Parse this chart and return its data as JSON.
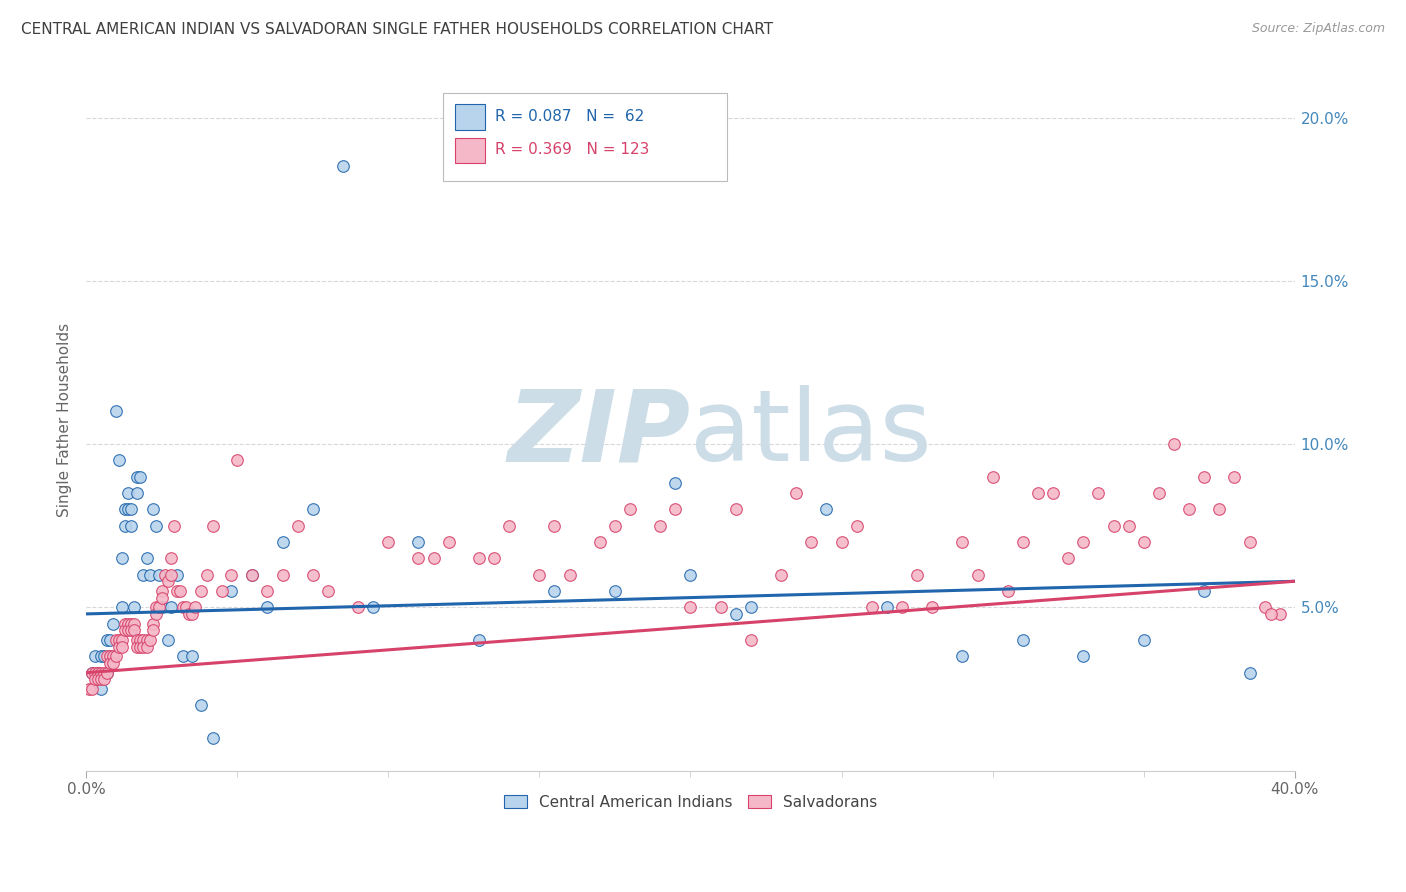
{
  "title": "CENTRAL AMERICAN INDIAN VS SALVADORAN SINGLE FATHER HOUSEHOLDS CORRELATION CHART",
  "source": "Source: ZipAtlas.com",
  "ylabel": "Single Father Households",
  "legend_blue_R": "0.087",
  "legend_blue_N": "62",
  "legend_pink_R": "0.369",
  "legend_pink_N": "123",
  "blue_scatter_x": [
    0.002,
    0.003,
    0.004,
    0.005,
    0.005,
    0.006,
    0.007,
    0.007,
    0.008,
    0.008,
    0.009,
    0.01,
    0.011,
    0.012,
    0.012,
    0.013,
    0.013,
    0.014,
    0.014,
    0.015,
    0.015,
    0.016,
    0.017,
    0.017,
    0.018,
    0.019,
    0.02,
    0.021,
    0.022,
    0.023,
    0.024,
    0.025,
    0.027,
    0.028,
    0.03,
    0.032,
    0.035,
    0.038,
    0.042,
    0.048,
    0.055,
    0.06,
    0.065,
    0.075,
    0.085,
    0.095,
    0.11,
    0.13,
    0.155,
    0.175,
    0.2,
    0.22,
    0.245,
    0.265,
    0.29,
    0.31,
    0.33,
    0.35,
    0.37,
    0.385,
    0.195,
    0.215
  ],
  "blue_scatter_y": [
    0.03,
    0.035,
    0.03,
    0.035,
    0.025,
    0.035,
    0.03,
    0.04,
    0.035,
    0.04,
    0.045,
    0.11,
    0.095,
    0.05,
    0.065,
    0.075,
    0.08,
    0.08,
    0.085,
    0.08,
    0.075,
    0.05,
    0.085,
    0.09,
    0.09,
    0.06,
    0.065,
    0.06,
    0.08,
    0.075,
    0.06,
    0.05,
    0.04,
    0.05,
    0.06,
    0.035,
    0.035,
    0.02,
    0.01,
    0.055,
    0.06,
    0.05,
    0.07,
    0.08,
    0.185,
    0.05,
    0.07,
    0.04,
    0.055,
    0.055,
    0.06,
    0.05,
    0.08,
    0.05,
    0.035,
    0.04,
    0.035,
    0.04,
    0.055,
    0.03,
    0.088,
    0.048
  ],
  "pink_scatter_x": [
    0.001,
    0.002,
    0.002,
    0.003,
    0.003,
    0.004,
    0.004,
    0.005,
    0.005,
    0.006,
    0.006,
    0.007,
    0.007,
    0.008,
    0.008,
    0.009,
    0.009,
    0.01,
    0.01,
    0.011,
    0.011,
    0.012,
    0.012,
    0.013,
    0.013,
    0.014,
    0.014,
    0.015,
    0.015,
    0.016,
    0.016,
    0.017,
    0.017,
    0.018,
    0.018,
    0.019,
    0.019,
    0.02,
    0.02,
    0.021,
    0.022,
    0.022,
    0.023,
    0.023,
    0.024,
    0.025,
    0.025,
    0.026,
    0.027,
    0.028,
    0.028,
    0.029,
    0.03,
    0.031,
    0.032,
    0.033,
    0.034,
    0.035,
    0.036,
    0.038,
    0.04,
    0.042,
    0.045,
    0.048,
    0.05,
    0.055,
    0.06,
    0.065,
    0.07,
    0.075,
    0.08,
    0.09,
    0.1,
    0.11,
    0.12,
    0.13,
    0.14,
    0.15,
    0.16,
    0.17,
    0.18,
    0.19,
    0.2,
    0.21,
    0.22,
    0.23,
    0.24,
    0.25,
    0.26,
    0.27,
    0.28,
    0.29,
    0.3,
    0.31,
    0.32,
    0.33,
    0.34,
    0.35,
    0.36,
    0.37,
    0.38,
    0.39,
    0.395,
    0.115,
    0.135,
    0.155,
    0.175,
    0.195,
    0.215,
    0.235,
    0.255,
    0.275,
    0.295,
    0.315,
    0.335,
    0.355,
    0.375,
    0.392,
    0.305,
    0.325,
    0.345,
    0.365,
    0.385
  ],
  "pink_scatter_y": [
    0.025,
    0.025,
    0.03,
    0.03,
    0.028,
    0.03,
    0.028,
    0.03,
    0.028,
    0.03,
    0.028,
    0.03,
    0.035,
    0.035,
    0.033,
    0.035,
    0.033,
    0.035,
    0.04,
    0.04,
    0.038,
    0.04,
    0.038,
    0.045,
    0.043,
    0.045,
    0.043,
    0.045,
    0.043,
    0.045,
    0.043,
    0.04,
    0.038,
    0.04,
    0.038,
    0.04,
    0.038,
    0.04,
    0.038,
    0.04,
    0.045,
    0.043,
    0.05,
    0.048,
    0.05,
    0.055,
    0.053,
    0.06,
    0.058,
    0.065,
    0.06,
    0.075,
    0.055,
    0.055,
    0.05,
    0.05,
    0.048,
    0.048,
    0.05,
    0.055,
    0.06,
    0.075,
    0.055,
    0.06,
    0.095,
    0.06,
    0.055,
    0.06,
    0.075,
    0.06,
    0.055,
    0.05,
    0.07,
    0.065,
    0.07,
    0.065,
    0.075,
    0.06,
    0.06,
    0.07,
    0.08,
    0.075,
    0.05,
    0.05,
    0.04,
    0.06,
    0.07,
    0.07,
    0.05,
    0.05,
    0.05,
    0.07,
    0.09,
    0.07,
    0.085,
    0.07,
    0.075,
    0.07,
    0.1,
    0.09,
    0.09,
    0.05,
    0.048,
    0.065,
    0.065,
    0.075,
    0.075,
    0.08,
    0.08,
    0.085,
    0.075,
    0.06,
    0.06,
    0.085,
    0.085,
    0.085,
    0.08,
    0.048,
    0.055,
    0.065,
    0.075,
    0.08,
    0.07
  ],
  "blue_line_x": [
    0.0,
    0.4
  ],
  "blue_line_y": [
    0.048,
    0.058
  ],
  "pink_line_x": [
    0.0,
    0.4
  ],
  "pink_line_y": [
    0.03,
    0.058
  ],
  "xlim": [
    0.0,
    0.4
  ],
  "ylim": [
    0.0,
    0.215
  ],
  "background_color": "#ffffff",
  "scatter_blue_color": "#b8d4ec",
  "scatter_pink_color": "#f5b8c8",
  "line_blue_color": "#2166ac",
  "line_pink_color": "#d6426a",
  "watermark_color": "#ccdde8",
  "grid_color": "#d8d8d8",
  "title_color": "#404040",
  "source_color": "#999999",
  "right_axis_color": "#4488bb",
  "axis_label_color": "#666666"
}
